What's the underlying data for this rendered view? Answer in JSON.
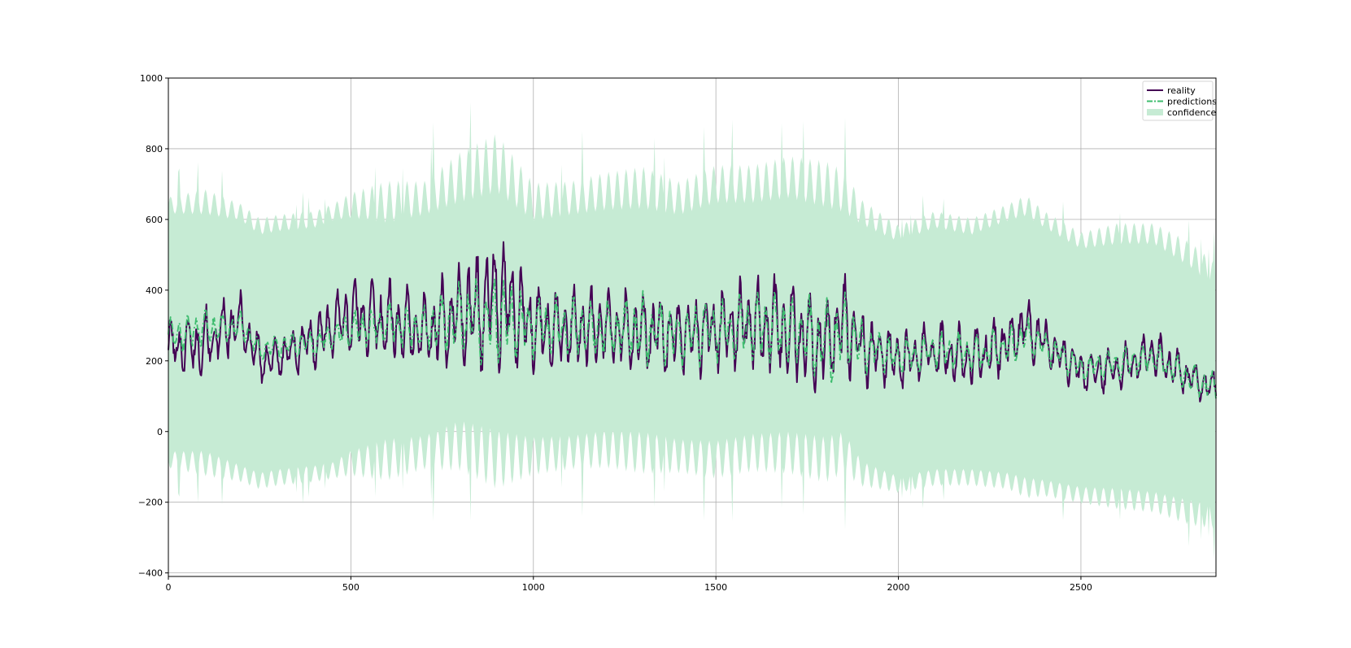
{
  "chart_data": {
    "type": "line",
    "title": "",
    "xlabel": "",
    "ylabel": "",
    "xlim": [
      0,
      2870
    ],
    "ylim": [
      -410,
      1000
    ],
    "x_ticks": [
      0,
      500,
      1000,
      1500,
      2000,
      2500
    ],
    "y_ticks": [
      -400,
      -200,
      0,
      200,
      400,
      600,
      800,
      1000
    ],
    "x_tick_labels": [
      "0",
      "500",
      "1000",
      "1500",
      "2000",
      "2500"
    ],
    "y_tick_labels": [
      "−400",
      "−200",
      "0",
      "200",
      "400",
      "600",
      "800",
      "1000"
    ],
    "grid": true,
    "legend_position": "top-right",
    "legend": [
      {
        "label": "reality",
        "color": "#440154",
        "style": "solid"
      },
      {
        "label": "predictions",
        "color": "#3dbc6e",
        "style": "dashdot"
      },
      {
        "label": "confidence",
        "color": "#c6ebd4",
        "style": "fill"
      }
    ],
    "series": [
      {
        "name": "reality",
        "color": "#440154",
        "x": [
          0,
          100,
          200,
          250,
          300,
          400,
          450,
          500,
          600,
          700,
          800,
          900,
          1000,
          1100,
          1200,
          1300,
          1400,
          1500,
          1600,
          1700,
          1800,
          1850,
          1900,
          2000,
          2100,
          2200,
          2300,
          2350,
          2400,
          2500,
          2600,
          2700,
          2800,
          2870
        ],
        "y": [
          240,
          250,
          310,
          200,
          210,
          260,
          300,
          330,
          310,
          280,
          330,
          380,
          300,
          290,
          290,
          280,
          270,
          290,
          310,
          280,
          240,
          310,
          240,
          200,
          230,
          210,
          250,
          300,
          250,
          170,
          180,
          220,
          150,
          120
        ],
        "amplitude": [
          70,
          90,
          80,
          70,
          60,
          70,
          80,
          100,
          110,
          100,
          140,
          180,
          120,
          110,
          100,
          110,
          100,
          110,
          120,
          140,
          120,
          130,
          100,
          80,
          80,
          80,
          80,
          80,
          70,
          60,
          60,
          60,
          50,
          50
        ]
      },
      {
        "name": "predictions",
        "color": "#3dbc6e",
        "x": [
          0,
          100,
          200,
          250,
          300,
          400,
          450,
          500,
          600,
          700,
          800,
          900,
          1000,
          1100,
          1200,
          1300,
          1400,
          1500,
          1600,
          1700,
          1800,
          1850,
          1900,
          2000,
          2100,
          2200,
          2300,
          2350,
          2400,
          2500,
          2600,
          2700,
          2800,
          2870
        ],
        "y": [
          270,
          290,
          300,
          230,
          240,
          250,
          270,
          290,
          300,
          290,
          320,
          320,
          300,
          290,
          290,
          290,
          270,
          290,
          300,
          290,
          240,
          290,
          240,
          210,
          230,
          220,
          240,
          270,
          240,
          180,
          190,
          210,
          150,
          120
        ],
        "amplitude": [
          50,
          50,
          40,
          30,
          30,
          40,
          40,
          50,
          60,
          60,
          100,
          120,
          80,
          90,
          80,
          90,
          80,
          80,
          90,
          100,
          110,
          100,
          70,
          50,
          50,
          50,
          50,
          50,
          40,
          40,
          40,
          40,
          40,
          40
        ]
      }
    ],
    "confidence": {
      "name": "confidence",
      "x": [
        0,
        100,
        200,
        250,
        300,
        400,
        450,
        500,
        600,
        700,
        800,
        900,
        1000,
        1100,
        1200,
        1300,
        1400,
        1500,
        1600,
        1700,
        1800,
        1850,
        1900,
        2000,
        2100,
        2200,
        2300,
        2350,
        2400,
        2500,
        2600,
        2700,
        2800,
        2870
      ],
      "upper": [
        640,
        650,
        620,
        580,
        590,
        600,
        620,
        640,
        650,
        660,
        720,
        760,
        650,
        660,
        680,
        690,
        660,
        700,
        700,
        720,
        700,
        680,
        620,
        560,
        600,
        580,
        620,
        640,
        600,
        540,
        560,
        560,
        500,
        440
      ],
      "lower": [
        -80,
        -90,
        -120,
        -140,
        -130,
        -120,
        -110,
        -90,
        -80,
        -60,
        -40,
        -80,
        -70,
        -60,
        -50,
        -60,
        -70,
        -80,
        -60,
        -60,
        -80,
        -60,
        -120,
        -150,
        -130,
        -130,
        -140,
        -160,
        -160,
        -180,
        -190,
        -200,
        -230,
        -240
      ],
      "spike": [
        40,
        60,
        40,
        40,
        40,
        40,
        40,
        60,
        100,
        80,
        120,
        140,
        90,
        80,
        90,
        100,
        80,
        90,
        90,
        100,
        110,
        100,
        60,
        40,
        40,
        40,
        40,
        50,
        40,
        40,
        50,
        50,
        60,
        60
      ]
    }
  }
}
